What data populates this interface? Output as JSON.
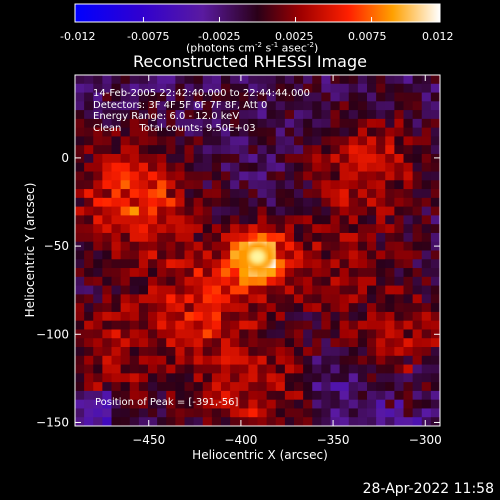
{
  "colorbar": {
    "ticks": [
      "-0.012",
      "-0.0075",
      "-0.0025",
      "0.0025",
      "0.0075",
      "0.012"
    ],
    "units": "(photons cm",
    "units_exp1": "-2",
    "units_mid": " s",
    "units_exp2": "-1",
    "units_tail": " asec",
    "units_exp3": "-2",
    "units_close": ")",
    "min": -0.012,
    "max": 0.012
  },
  "chart_data": {
    "type": "heatmap",
    "title": "Reconstructed RHESSI Image",
    "xlabel": "Heliocentric X (arcsec)",
    "ylabel": "Heliocentric Y (arcsec)",
    "xlim": [
      -490,
      -292
    ],
    "ylim": [
      -152,
      47
    ],
    "xticks": [
      -450,
      -400,
      -350,
      -300
    ],
    "yticks": [
      0,
      -50,
      -100,
      -150
    ],
    "annotations": [
      "14-Feb-2005 22:42:40.000 to 22:44:44.000",
      "Detectors: 3F 4F 5F 6F 7F 8F, Att 0",
      "Energy Range: 6.0 - 12.0 keV",
      "Clean",
      "Total counts: 9.50E+03"
    ],
    "peak_label": "Position of Peak = [-391,-56]",
    "peak": [
      -391,
      -56
    ],
    "sources": [
      {
        "x": -391,
        "y": -56,
        "value": 0.012
      },
      {
        "x": -458,
        "y": -22,
        "value": 0.0075
      },
      {
        "x": -330,
        "y": -5,
        "value": 0.005
      },
      {
        "x": -420,
        "y": -80,
        "value": 0.006
      },
      {
        "x": -395,
        "y": -135,
        "value": 0.005
      },
      {
        "x": -310,
        "y": -105,
        "value": 0.004
      },
      {
        "x": -470,
        "y": -110,
        "value": 0.004
      },
      {
        "x": -350,
        "y": -60,
        "value": 0.0035
      }
    ]
  },
  "footer": {
    "timestamp": "28-Apr-2022 11:58"
  },
  "colors": {
    "background": "#000000",
    "axes": "#ffffff"
  }
}
